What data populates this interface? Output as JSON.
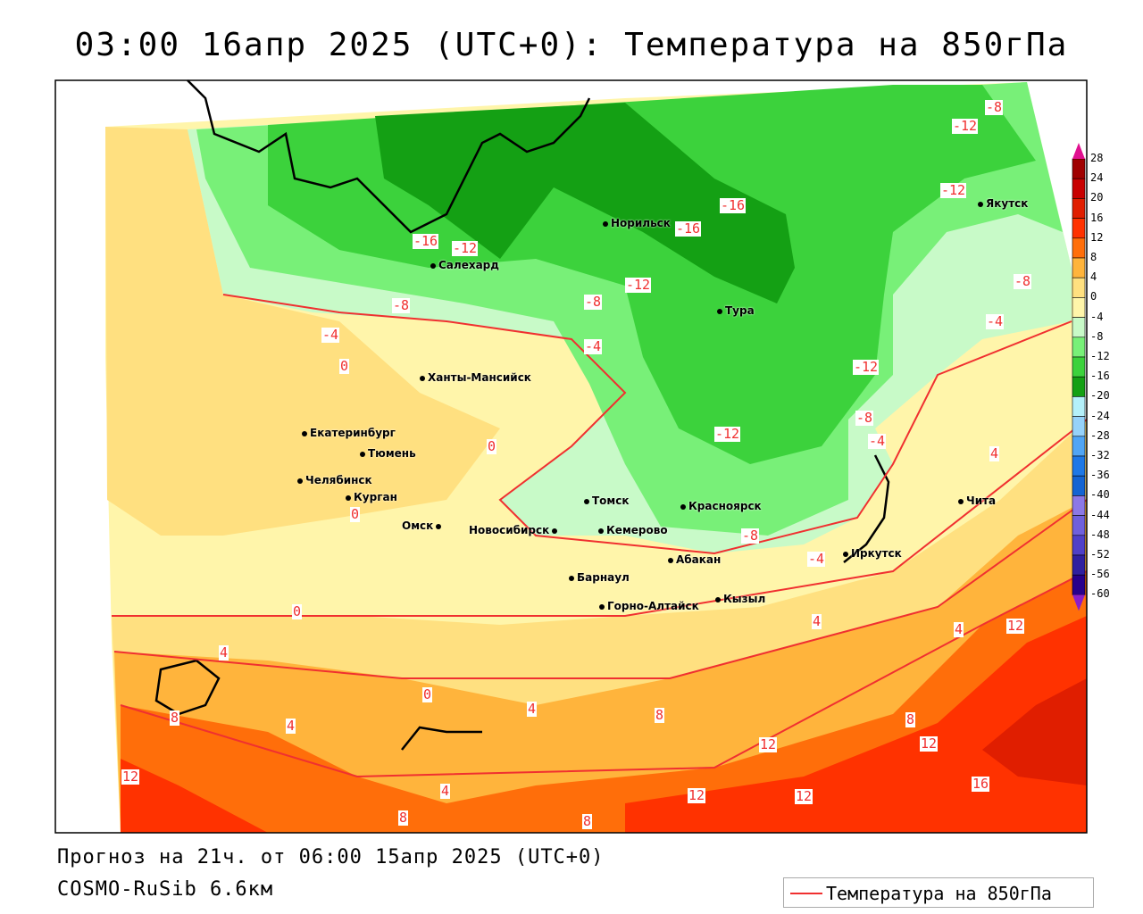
{
  "title": "03:00 16апр 2025 (UTC+0): Температура на 850гПа",
  "footer": {
    "forecast": "Прогноз на 21ч. от 06:00 15апр 2025 (UTC+0)",
    "model": "COSMO-RuSib 6.6км"
  },
  "legend": {
    "label": "Температура на 850гПа",
    "color": "#f03030"
  },
  "colorbar": {
    "labels": [
      "28",
      "24",
      "20",
      "16",
      "12",
      "8",
      "4",
      "0",
      "-4",
      "-8",
      "-12",
      "-16",
      "-20",
      "-24",
      "-28",
      "-32",
      "-36",
      "-40",
      "-44",
      "-48",
      "-52",
      "-56",
      "-60"
    ],
    "colors": [
      "#a00000",
      "#c80000",
      "#e01e00",
      "#ff3200",
      "#ff6e0a",
      "#ffb43c",
      "#ffe080",
      "#fff5aa",
      "#c8fac8",
      "#78f078",
      "#3cd23c",
      "#14a014",
      "#b4f0fa",
      "#96d2fa",
      "#50a5f5",
      "#1e78e6",
      "#1464d2",
      "#8c78e6",
      "#7060dc",
      "#5040c8",
      "#3020a0",
      "#28008c"
    ],
    "top_arrow_color": "#e0108f",
    "bottom_arrow_color": "#8c1ec8"
  },
  "cities": [
    {
      "name": "Норильск"
    },
    {
      "name": "Якутск"
    },
    {
      "name": "Салехард"
    },
    {
      "name": "Тура"
    },
    {
      "name": "Ханты-Мансийск"
    },
    {
      "name": "Екатеринбург"
    },
    {
      "name": "Тюмень"
    },
    {
      "name": "Челябинск"
    },
    {
      "name": "Курган"
    },
    {
      "name": "Омск"
    },
    {
      "name": "Новосибирск"
    },
    {
      "name": "Томск"
    },
    {
      "name": "Кемерово"
    },
    {
      "name": "Красноярск"
    },
    {
      "name": "Барнаул"
    },
    {
      "name": "Абакан"
    },
    {
      "name": "Иркутск"
    },
    {
      "name": "Чита"
    },
    {
      "name": "Кызыл"
    },
    {
      "name": "Горно-Алтайск"
    }
  ],
  "contour_labels": [
    "-8",
    "-12",
    "-12",
    "-16",
    "-16",
    "-16",
    "-12",
    "-12",
    "-8",
    "-8",
    "-4",
    "-12",
    "-8",
    "-4",
    "-12",
    "-8",
    "0",
    "-4",
    "0",
    "0",
    "0",
    "4",
    "8",
    "4",
    "0",
    "12",
    "4",
    "8",
    "4",
    "8",
    "12",
    "12",
    "16",
    "12",
    "12",
    "8",
    "8",
    "4",
    "12",
    "4",
    "4",
    "-8",
    "-4",
    "-4"
  ]
}
